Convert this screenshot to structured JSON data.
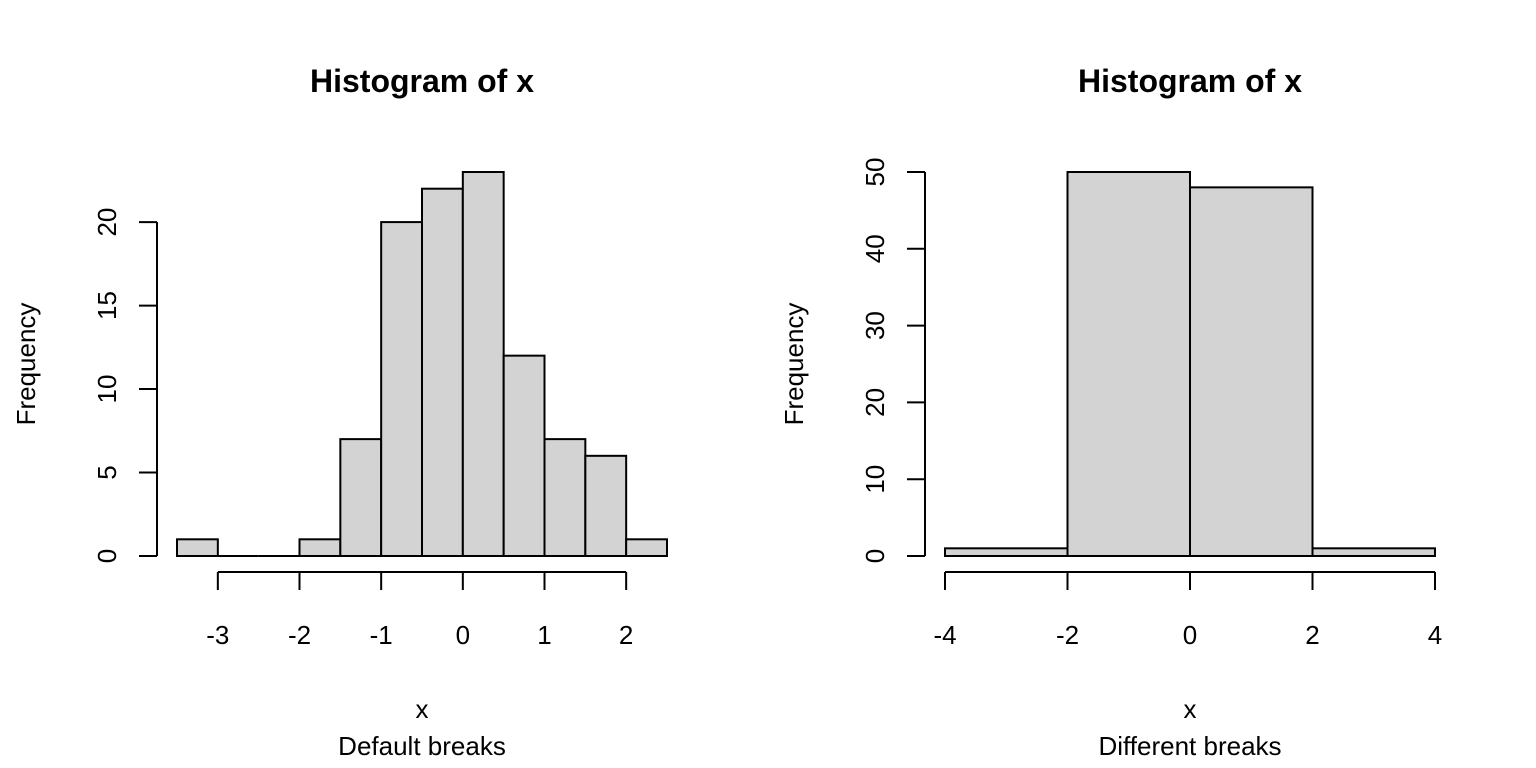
{
  "chart_data": [
    {
      "type": "bar",
      "title": "Histogram of x",
      "xlabel": "x",
      "ylabel": "Frequency",
      "subtitle": "Default breaks",
      "bins": [
        {
          "from": -3.5,
          "to": -3.0,
          "count": 1
        },
        {
          "from": -3.0,
          "to": -2.5,
          "count": 0
        },
        {
          "from": -2.5,
          "to": -2.0,
          "count": 0
        },
        {
          "from": -2.0,
          "to": -1.5,
          "count": 1
        },
        {
          "from": -1.5,
          "to": -1.0,
          "count": 7
        },
        {
          "from": -1.0,
          "to": -0.5,
          "count": 20
        },
        {
          "from": -0.5,
          "to": 0.0,
          "count": 22
        },
        {
          "from": 0.0,
          "to": 0.5,
          "count": 23
        },
        {
          "from": 0.5,
          "to": 1.0,
          "count": 12
        },
        {
          "from": 1.0,
          "to": 1.5,
          "count": 7
        },
        {
          "from": 1.5,
          "to": 2.0,
          "count": 6
        },
        {
          "from": 2.0,
          "to": 2.5,
          "count": 1
        }
      ],
      "xlim": [
        -3.5,
        2.5
      ],
      "ylim": [
        0,
        23
      ],
      "xticks": [
        -3,
        -2,
        -1,
        0,
        1,
        2
      ],
      "yticks": [
        0,
        5,
        10,
        15,
        20
      ],
      "xtick_labels": [
        "-3",
        "-2",
        "-1",
        "0",
        "1",
        "2"
      ],
      "ytick_labels": [
        "0",
        "5",
        "10",
        "15",
        "20"
      ],
      "grid": false
    },
    {
      "type": "bar",
      "title": "Histogram of x",
      "xlabel": "x",
      "ylabel": "Frequency",
      "subtitle": "Different breaks",
      "bins": [
        {
          "from": -4,
          "to": -2,
          "count": 1
        },
        {
          "from": -2,
          "to": 0,
          "count": 50
        },
        {
          "from": 0,
          "to": 2,
          "count": 48
        },
        {
          "from": 2,
          "to": 4,
          "count": 1
        }
      ],
      "xlim": [
        -4,
        4
      ],
      "ylim": [
        0,
        50
      ],
      "xticks": [
        -4,
        -2,
        0,
        2,
        4
      ],
      "yticks": [
        0,
        10,
        20,
        30,
        40,
        50
      ],
      "xtick_labels": [
        "-4",
        "-2",
        "0",
        "2",
        "4"
      ],
      "ytick_labels": [
        "0",
        "10",
        "20",
        "30",
        "40",
        "50"
      ],
      "grid": false
    }
  ]
}
